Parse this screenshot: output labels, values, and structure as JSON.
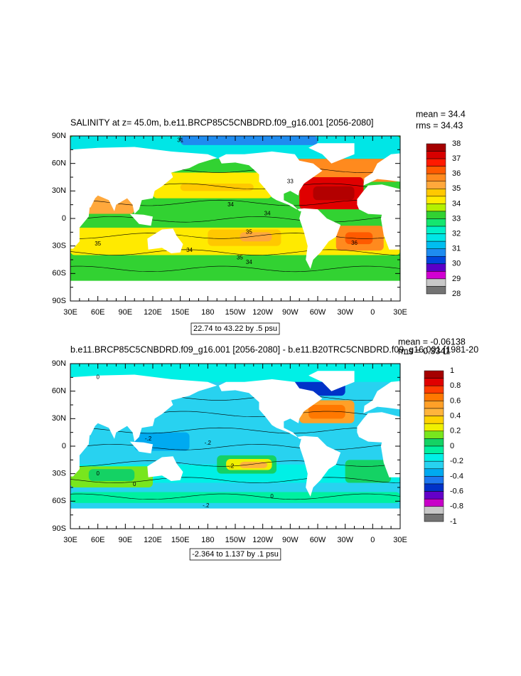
{
  "panels": [
    {
      "title": "SALINITY at z=  45.0m, b.e11.BRCP85C5CNBDRD.f09_g16.001 [2056-2080]",
      "stats": [
        "mean = 34.4",
        "rms = 34.43"
      ],
      "lat_labels": [
        "90N",
        "60N",
        "30N",
        "0",
        "30S",
        "60S",
        "90S"
      ],
      "lon_labels": [
        "30E",
        "60E",
        "90E",
        "120E",
        "150E",
        "180",
        "150W",
        "120W",
        "90W",
        "60W",
        "30W",
        "0",
        "30E"
      ],
      "contour_info": "22.74 to 43.22 by .5 psu",
      "contour_labels": [
        "31",
        "33",
        "34",
        "34",
        "34",
        "35",
        "35",
        "34",
        "35",
        "36"
      ],
      "colorbar": {
        "labels": [
          "38",
          "37",
          "36",
          "35",
          "34",
          "33",
          "32",
          "31",
          "30",
          "29",
          "28"
        ],
        "colors": [
          "#a50000",
          "#d70000",
          "#ff1a00",
          "#ff5a00",
          "#ff8a1e",
          "#ffa83c",
          "#ffc800",
          "#ffea00",
          "#b4f000",
          "#32d232",
          "#14e66e",
          "#00f0c8",
          "#00e6e6",
          "#00bef0",
          "#1e8cf0",
          "#0046dc",
          "#5a00c8",
          "#d200d2",
          "#c8c8c8",
          "#737373"
        ]
      }
    },
    {
      "title": "b.e11.BRCP85C5CNBDRD.f09_g16.001 [2056-2080] - b.e11.B20TRC5CNBDRD.f09_g16.001 [1981-20",
      "stats": [
        "mean = -0.06138",
        "rms = 0.3341"
      ],
      "lat_labels": [
        "90N",
        "60N",
        "30N",
        "0",
        "30S",
        "60S",
        "90S"
      ],
      "lon_labels": [
        "30E",
        "60E",
        "90E",
        "120E",
        "150E",
        "180",
        "150W",
        "120W",
        "90W",
        "60W",
        "30W",
        "0",
        "30E"
      ],
      "contour_info": "-2.364 to 1.137 by .1 psu",
      "contour_labels": [
        "0",
        "-.2",
        "-.2",
        "0",
        "0",
        "-.2",
        "0",
        "-.2"
      ],
      "colorbar": {
        "labels": [
          "1",
          "0.8",
          "0.6",
          "0.4",
          "0.2",
          "0",
          "-0.2",
          "-0.4",
          "-0.6",
          "-0.8",
          "-1"
        ],
        "colors": [
          "#a50000",
          "#e00000",
          "#ff3c00",
          "#ff7800",
          "#ffa028",
          "#ffb43c",
          "#ffd200",
          "#f0f000",
          "#78e61e",
          "#14d264",
          "#00f0a0",
          "#00f0e6",
          "#28d2f0",
          "#00aaf0",
          "#1e78f0",
          "#0032c8",
          "#6400c8",
          "#c800c8",
          "#c8c8c8",
          "#737373"
        ]
      }
    }
  ]
}
